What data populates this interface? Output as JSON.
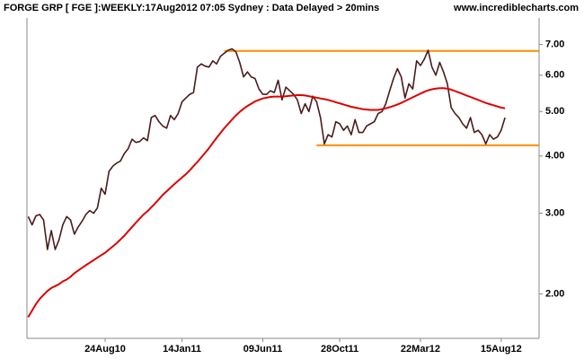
{
  "chart_data": {
    "type": "line",
    "title": "FORGE GRP [ FGE ]:WEEKLY:17Aug2012 07:05 Sydney : Data Delayed > 20mins",
    "source": "www.incrediblecharts.com",
    "categories": [
      null,
      null,
      null,
      null,
      null,
      null,
      null,
      null,
      null,
      null,
      null,
      null,
      null,
      null,
      null,
      null,
      null,
      null,
      null,
      null,
      "24Aug10",
      null,
      null,
      null,
      null,
      null,
      null,
      null,
      null,
      null,
      null,
      null,
      null,
      null,
      null,
      null,
      null,
      null,
      null,
      null,
      "14Jan11",
      null,
      null,
      null,
      null,
      null,
      null,
      null,
      null,
      null,
      null,
      null,
      null,
      null,
      null,
      null,
      null,
      null,
      null,
      null,
      null,
      "09Jun11",
      null,
      null,
      null,
      null,
      null,
      null,
      null,
      null,
      null,
      null,
      null,
      null,
      null,
      null,
      null,
      null,
      null,
      null,
      null,
      "28Oct11",
      null,
      null,
      null,
      null,
      null,
      null,
      null,
      null,
      null,
      null,
      null,
      null,
      null,
      null,
      null,
      null,
      null,
      null,
      null,
      null,
      "22Mar12",
      null,
      null,
      null,
      null,
      null,
      null,
      null,
      null,
      null,
      null,
      null,
      null,
      null,
      null,
      null,
      null,
      null,
      null,
      null,
      null,
      "15Aug12",
      null
    ],
    "series": [
      {
        "color": "#4a1c1c",
        "values": [
          2.95,
          2.83,
          2.96,
          2.98,
          2.9,
          2.5,
          2.75,
          2.5,
          2.62,
          2.83,
          2.95,
          2.9,
          2.7,
          2.8,
          2.88,
          2.98,
          3.04,
          3.0,
          3.08,
          3.4,
          3.3,
          3.7,
          3.8,
          3.86,
          3.9,
          4.05,
          4.15,
          4.35,
          4.28,
          4.3,
          4.38,
          4.32,
          4.85,
          4.9,
          4.75,
          4.65,
          4.6,
          4.9,
          4.8,
          4.95,
          5.25,
          5.35,
          5.45,
          5.5,
          6.25,
          6.35,
          6.28,
          6.25,
          6.45,
          6.35,
          6.6,
          6.7,
          6.8,
          6.85,
          6.75,
          6.4,
          5.95,
          6.1,
          5.95,
          5.9,
          5.6,
          5.45,
          5.45,
          5.55,
          5.5,
          5.85,
          5.3,
          5.65,
          5.55,
          5.45,
          5.3,
          4.95,
          5.2,
          5.0,
          5.4,
          5.25,
          4.85,
          4.25,
          4.45,
          4.4,
          4.75,
          4.7,
          4.55,
          4.65,
          4.45,
          4.8,
          4.5,
          4.5,
          4.65,
          4.7,
          4.75,
          4.95,
          5.0,
          5.2,
          5.55,
          5.9,
          6.2,
          5.95,
          5.35,
          5.75,
          5.6,
          6.45,
          6.3,
          6.5,
          6.8,
          6.25,
          6.0,
          6.4,
          6.1,
          5.75,
          5.1,
          4.95,
          4.85,
          4.7,
          4.6,
          4.85,
          4.5,
          4.55,
          4.45,
          4.25,
          4.45,
          4.35,
          4.4,
          4.55,
          4.85
        ]
      },
      {
        "color": "#dd0000",
        "values": [
          1.78,
          1.84,
          1.9,
          1.95,
          1.99,
          2.03,
          2.06,
          2.08,
          2.1,
          2.13,
          2.15,
          2.18,
          2.22,
          2.25,
          2.28,
          2.31,
          2.34,
          2.37,
          2.4,
          2.43,
          2.46,
          2.5,
          2.54,
          2.58,
          2.63,
          2.68,
          2.74,
          2.8,
          2.86,
          2.92,
          2.98,
          3.03,
          3.09,
          3.15,
          3.22,
          3.29,
          3.35,
          3.41,
          3.47,
          3.53,
          3.59,
          3.65,
          3.72,
          3.8,
          3.88,
          3.97,
          4.06,
          4.16,
          4.27,
          4.38,
          4.49,
          4.6,
          4.7,
          4.8,
          4.9,
          4.99,
          5.07,
          5.14,
          5.2,
          5.26,
          5.3,
          5.34,
          5.36,
          5.38,
          5.39,
          5.39,
          5.39,
          5.4,
          5.41,
          5.42,
          5.43,
          5.43,
          5.42,
          5.4,
          5.38,
          5.36,
          5.34,
          5.32,
          5.3,
          5.27,
          5.24,
          5.21,
          5.18,
          5.15,
          5.12,
          5.1,
          5.08,
          5.06,
          5.05,
          5.04,
          5.04,
          5.04,
          5.06,
          5.08,
          5.11,
          5.14,
          5.18,
          5.22,
          5.27,
          5.32,
          5.37,
          5.42,
          5.47,
          5.52,
          5.56,
          5.59,
          5.61,
          5.62,
          5.62,
          5.61,
          5.58,
          5.54,
          5.5,
          5.46,
          5.42,
          5.38,
          5.34,
          5.3,
          5.26,
          5.22,
          5.19,
          5.16,
          5.13,
          5.1,
          5.08
        ]
      }
    ],
    "hlines": [
      {
        "value": 6.78,
        "color": "#ff8c00",
        "start": 51
      },
      {
        "value": 4.22,
        "color": "#ff8c00",
        "start": 75
      }
    ],
    "log_scale": true,
    "ylim": [
      1.6,
      8.0
    ],
    "yticks": [
      {
        "value": 2,
        "label": "2.00"
      },
      {
        "value": 3,
        "label": "3.00"
      },
      {
        "value": 4,
        "label": "4.00"
      },
      {
        "value": 5,
        "label": "5.00"
      },
      {
        "value": 6,
        "label": "6.00"
      },
      {
        "value": 7,
        "label": "7.00"
      }
    ],
    "grid": false
  }
}
